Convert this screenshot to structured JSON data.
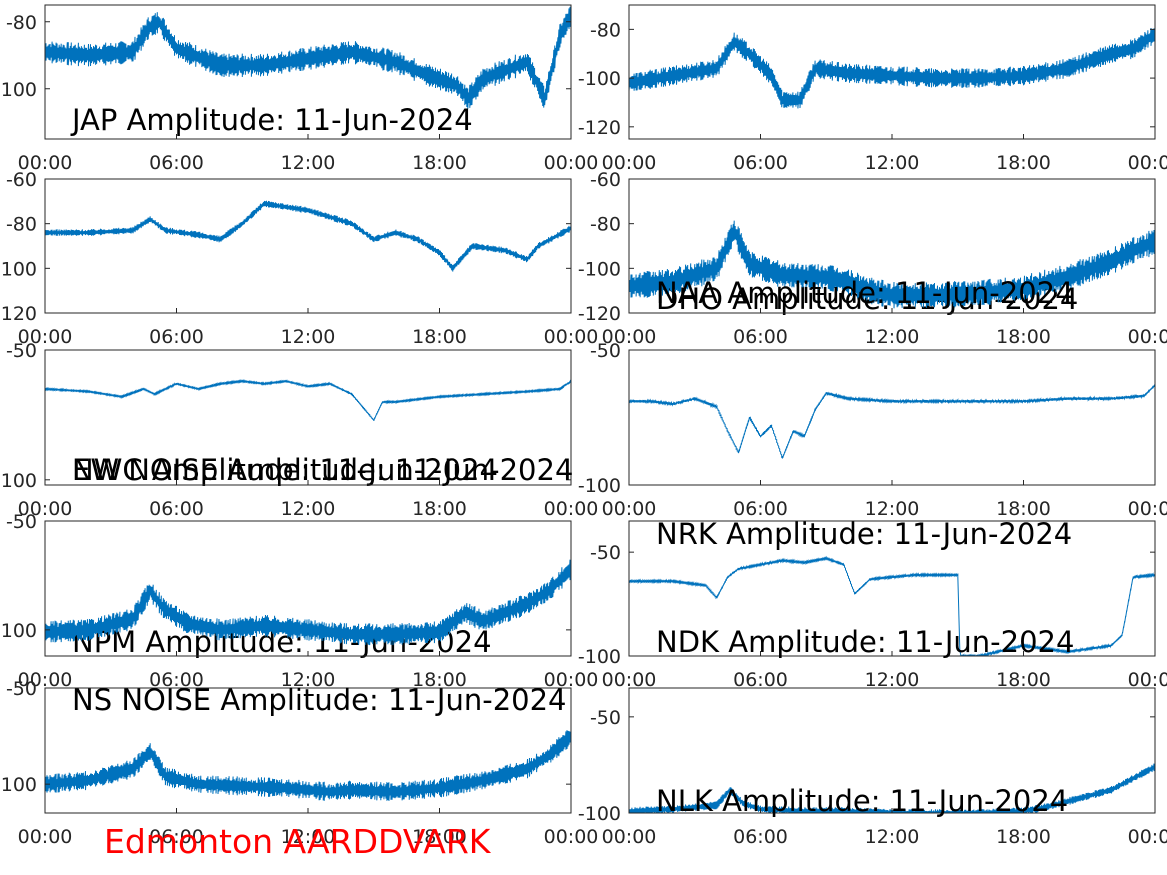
{
  "footer_label": "Edmonton AARDDVARK",
  "colors": {
    "line": "#0072bd",
    "footer": "#ff0000",
    "axes": "#262626"
  },
  "chart_data": [
    {
      "type": "line",
      "title": "JAP Amplitude: 11-Jun-2024",
      "ylim": [
        -115,
        -75
      ],
      "yticks": [
        -80,
        -100
      ],
      "xticks": [
        "00:00",
        "06:00",
        "12:00",
        "18:00",
        "00:00"
      ],
      "xlim": [
        0,
        24
      ],
      "noise": 3.5,
      "x": [
        0,
        2,
        4,
        4.7,
        5.2,
        6,
        8,
        10,
        12,
        14,
        16,
        17.5,
        18.8,
        19.3,
        20,
        22,
        22.8,
        23.5,
        24
      ],
      "y": [
        -89,
        -90,
        -89,
        -82,
        -80,
        -88,
        -93,
        -93,
        -91,
        -89,
        -92,
        -96,
        -99,
        -103,
        -97,
        -92,
        -103,
        -84,
        -78
      ]
    },
    {
      "type": "line",
      "title": "DHO Amplitude: 11-Jun-2024",
      "ylim": [
        -125,
        -70
      ],
      "yticks": [
        -80,
        -100,
        -120
      ],
      "xticks": [
        "00:00",
        "06:00",
        "12:00",
        "18:00",
        "00:00"
      ],
      "xlim": [
        0,
        24
      ],
      "noise": 4,
      "x": [
        0,
        2,
        4,
        4.8,
        5.5,
        6.5,
        7,
        7.8,
        8.5,
        10,
        12,
        14,
        16,
        18,
        20,
        22,
        23,
        24
      ],
      "y": [
        -102,
        -99,
        -96,
        -85,
        -90,
        -99,
        -109,
        -109,
        -96,
        -98,
        -99,
        -100,
        -100,
        -99,
        -96,
        -90,
        -88,
        -82
      ]
    },
    {
      "type": "line",
      "title": "NWC Amplitude: 11-Jun-2024",
      "ylim": [
        -120,
        -60
      ],
      "yticks": [
        -60,
        -80,
        -100,
        -120
      ],
      "xticks": [
        "00:00",
        "06:00",
        "12:00",
        "18:00",
        "00:00"
      ],
      "xlim": [
        0,
        24
      ],
      "noise": 1.5,
      "x": [
        0,
        2,
        4,
        4.8,
        5.5,
        7,
        8,
        9,
        10,
        12,
        14,
        15,
        16,
        17,
        18,
        18.6,
        19.5,
        21,
        22,
        22.5,
        24
      ],
      "y": [
        -84,
        -84,
        -83,
        -78,
        -83,
        -85,
        -87,
        -80,
        -71,
        -74,
        -80,
        -87,
        -84,
        -87,
        -93,
        -100,
        -90,
        -92,
        -96,
        -90,
        -82
      ]
    },
    {
      "type": "line",
      "title": "NRK Amplitude: 11-Jun-2024",
      "ylim": [
        -120,
        -60
      ],
      "yticks": [
        -60,
        -80,
        -100,
        -120
      ],
      "xticks": [
        "00:00",
        "06:00",
        "12:00",
        "18:00",
        "00:00"
      ],
      "xlim": [
        0,
        24
      ],
      "noise": 6,
      "x": [
        0,
        2,
        4,
        4.8,
        5.5,
        7,
        9,
        10,
        11,
        12,
        14,
        16,
        18,
        20,
        22,
        23,
        24
      ],
      "y": [
        -108,
        -106,
        -100,
        -83,
        -98,
        -103,
        -104,
        -106,
        -110,
        -112,
        -112,
        -111,
        -109,
        -104,
        -97,
        -92,
        -88
      ]
    },
    {
      "type": "line",
      "title": "NPM Amplitude: 11-Jun-2024",
      "ylim": [
        -102,
        -50
      ],
      "yticks": [
        -50,
        -100
      ],
      "xticks": [
        "00:00",
        "06:00",
        "12:00",
        "18:00",
        "00:00"
      ],
      "xlim": [
        0,
        24
      ],
      "noise": 0.3,
      "x": [
        0,
        2,
        3.5,
        4.5,
        5,
        6,
        7,
        8,
        9,
        10,
        11,
        12,
        13,
        14,
        14.6,
        15,
        15.4,
        16,
        18,
        20,
        22,
        23.5,
        24
      ],
      "y": [
        -65,
        -66,
        -68,
        -65,
        -67,
        -63,
        -65,
        -63,
        -62,
        -63,
        -62,
        -64,
        -63,
        -67,
        -73,
        -77,
        -70,
        -70,
        -68,
        -67,
        -66,
        -65,
        -62
      ]
    },
    {
      "type": "line",
      "title": "NAA Amplitude: 11-Jun-2024",
      "ylim": [
        -100,
        -50
      ],
      "yticks": [
        -50,
        -100
      ],
      "xticks": [
        "00:00",
        "06:00",
        "12:00",
        "18:00",
        "00:00"
      ],
      "xlim": [
        0,
        24
      ],
      "noise": 0.5,
      "x": [
        0,
        1,
        2,
        3,
        4,
        4.5,
        5,
        5.5,
        6,
        6.5,
        7,
        7.5,
        8,
        8.5,
        9,
        10,
        12,
        14,
        16,
        18,
        20,
        22,
        23.5,
        24
      ],
      "y": [
        -69,
        -69,
        -70,
        -68,
        -71,
        -80,
        -88,
        -75,
        -82,
        -78,
        -90,
        -80,
        -82,
        -72,
        -66,
        -68,
        -69,
        -69,
        -69,
        -69,
        -68,
        -68,
        -67,
        -63
      ]
    },
    {
      "type": "line",
      "title": "EW NOISE Amplitude: 11-Jun-2024",
      "ylim": [
        -112,
        -50
      ],
      "yticks": [
        -50,
        -100
      ],
      "xticks": [
        "00:00",
        "06:00",
        "12:00",
        "18:00",
        "00:00"
      ],
      "xlim": [
        0,
        24
      ],
      "noise": 5,
      "x": [
        0,
        2,
        4,
        4.8,
        5.4,
        6.5,
        8,
        10,
        12,
        14,
        16,
        18,
        19.2,
        20,
        22,
        23,
        24
      ],
      "y": [
        -101,
        -100,
        -95,
        -82,
        -90,
        -97,
        -100,
        -98,
        -100,
        -102,
        -102,
        -101,
        -92,
        -96,
        -88,
        -82,
        -72
      ]
    },
    {
      "type": "line",
      "title": "NDK Amplitude: 11-Jun-2024",
      "ylim": [
        -100,
        -35
      ],
      "yticks": [
        -50,
        -100
      ],
      "xticks": [
        "00:00",
        "06:00",
        "12:00",
        "18:00",
        "00:00"
      ],
      "xlim": [
        0,
        24
      ],
      "noise": 0.5,
      "x": [
        0,
        2,
        3.5,
        4,
        4.5,
        5,
        6,
        7,
        8,
        9,
        9.8,
        10.3,
        11,
        12,
        13,
        14,
        15,
        15.1,
        16,
        18,
        20,
        22,
        22.5,
        23,
        24
      ],
      "y": [
        -64,
        -64,
        -66,
        -72,
        -62,
        -58,
        -56,
        -54,
        -55,
        -53,
        -56,
        -70,
        -63,
        -62,
        -61,
        -61,
        -61,
        -100,
        -100,
        -95,
        -98,
        -95,
        -90,
        -62,
        -61
      ]
    },
    {
      "type": "line",
      "title": "NS NOISE Amplitude: 11-Jun-2024",
      "ylim": [
        -115,
        -50
      ],
      "yticks": [
        -50,
        -100
      ],
      "xticks": [
        "00:00",
        "06:00",
        "12:00",
        "18:00",
        "00:00"
      ],
      "xlim": [
        0,
        24
      ],
      "noise": 5,
      "x": [
        0,
        2,
        4,
        4.8,
        5.5,
        7,
        9,
        11,
        13,
        14,
        16,
        18,
        20,
        22,
        23,
        24
      ],
      "y": [
        -100,
        -98,
        -92,
        -83,
        -96,
        -100,
        -101,
        -102,
        -104,
        -103,
        -104,
        -102,
        -98,
        -92,
        -85,
        -75
      ]
    },
    {
      "type": "line",
      "title": "NLK Amplitude: 11-Jun-2024",
      "ylim": [
        -100,
        -35
      ],
      "yticks": [
        -50,
        -100
      ],
      "xticks": [
        "00:00",
        "06:00",
        "12:00",
        "18:00",
        "00:00"
      ],
      "xlim": [
        0,
        24
      ],
      "noise": 2,
      "x": [
        0,
        2,
        4,
        4.6,
        5.2,
        6,
        8,
        10,
        12,
        14,
        16,
        18,
        19,
        20,
        22,
        23,
        24
      ],
      "y": [
        -99,
        -98,
        -96,
        -88,
        -95,
        -98,
        -99,
        -99,
        -100,
        -100,
        -100,
        -99,
        -97,
        -94,
        -88,
        -82,
        -76
      ]
    }
  ]
}
